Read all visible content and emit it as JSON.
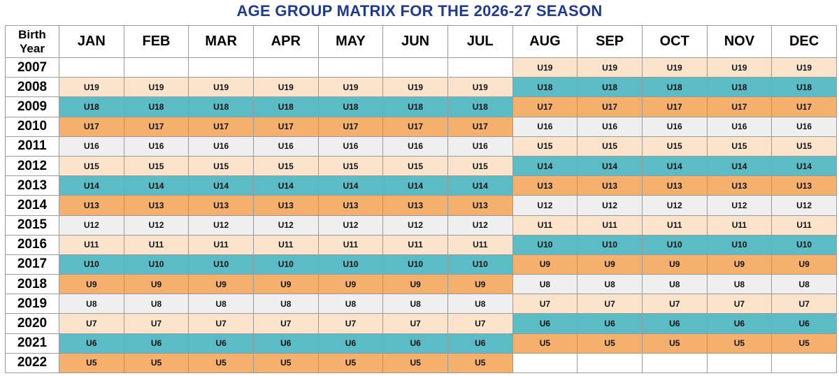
{
  "title": "AGE GROUP MATRIX FOR THE 2026-27 SEASON",
  "header": {
    "corner_line1": "Birth",
    "corner_line2": "Year",
    "months": [
      "JAN",
      "FEB",
      "MAR",
      "APR",
      "MAY",
      "JUN",
      "JUL",
      "AUG",
      "SEP",
      "OCT",
      "NOV",
      "DEC"
    ]
  },
  "rows": [
    {
      "year": "2007",
      "cells": [
        "",
        "",
        "",
        "",
        "",
        "",
        "",
        "U19",
        "U19",
        "U19",
        "U19",
        "U19"
      ]
    },
    {
      "year": "2008",
      "cells": [
        "U19",
        "U19",
        "U19",
        "U19",
        "U19",
        "U19",
        "U19",
        "U18",
        "U18",
        "U18",
        "U18",
        "U18"
      ]
    },
    {
      "year": "2009",
      "cells": [
        "U18",
        "U18",
        "U18",
        "U18",
        "U18",
        "U18",
        "U18",
        "U17",
        "U17",
        "U17",
        "U17",
        "U17"
      ]
    },
    {
      "year": "2010",
      "cells": [
        "U17",
        "U17",
        "U17",
        "U17",
        "U17",
        "U17",
        "U17",
        "U16",
        "U16",
        "U16",
        "U16",
        "U16"
      ]
    },
    {
      "year": "2011",
      "cells": [
        "U16",
        "U16",
        "U16",
        "U16",
        "U16",
        "U16",
        "U16",
        "U15",
        "U15",
        "U15",
        "U15",
        "U15"
      ]
    },
    {
      "year": "2012",
      "cells": [
        "U15",
        "U15",
        "U15",
        "U15",
        "U15",
        "U15",
        "U15",
        "U14",
        "U14",
        "U14",
        "U14",
        "U14"
      ]
    },
    {
      "year": "2013",
      "cells": [
        "U14",
        "U14",
        "U14",
        "U14",
        "U14",
        "U14",
        "U14",
        "U13",
        "U13",
        "U13",
        "U13",
        "U13"
      ]
    },
    {
      "year": "2014",
      "cells": [
        "U13",
        "U13",
        "U13",
        "U13",
        "U13",
        "U13",
        "U13",
        "U12",
        "U12",
        "U12",
        "U12",
        "U12"
      ]
    },
    {
      "year": "2015",
      "cells": [
        "U12",
        "U12",
        "U12",
        "U12",
        "U12",
        "U12",
        "U12",
        "U11",
        "U11",
        "U11",
        "U11",
        "U11"
      ]
    },
    {
      "year": "2016",
      "cells": [
        "U11",
        "U11",
        "U11",
        "U11",
        "U11",
        "U11",
        "U11",
        "U10",
        "U10",
        "U10",
        "U10",
        "U10"
      ]
    },
    {
      "year": "2017",
      "cells": [
        "U10",
        "U10",
        "U10",
        "U10",
        "U10",
        "U10",
        "U10",
        "U9",
        "U9",
        "U9",
        "U9",
        "U9"
      ]
    },
    {
      "year": "2018",
      "cells": [
        "U9",
        "U9",
        "U9",
        "U9",
        "U9",
        "U9",
        "U9",
        "U8",
        "U8",
        "U8",
        "U8",
        "U8"
      ]
    },
    {
      "year": "2019",
      "cells": [
        "U8",
        "U8",
        "U8",
        "U8",
        "U8",
        "U8",
        "U8",
        "U7",
        "U7",
        "U7",
        "U7",
        "U7"
      ]
    },
    {
      "year": "2020",
      "cells": [
        "U7",
        "U7",
        "U7",
        "U7",
        "U7",
        "U7",
        "U7",
        "U6",
        "U6",
        "U6",
        "U6",
        "U6"
      ]
    },
    {
      "year": "2021",
      "cells": [
        "U6",
        "U6",
        "U6",
        "U6",
        "U6",
        "U6",
        "U6",
        "U5",
        "U5",
        "U5",
        "U5",
        "U5"
      ]
    },
    {
      "year": "2022",
      "cells": [
        "U5",
        "U5",
        "U5",
        "U5",
        "U5",
        "U5",
        "U5",
        "",
        "",
        "",
        "",
        ""
      ]
    }
  ],
  "colors": {
    "title": "#1f3a93",
    "peach": "#fce4cc",
    "teal": "#5bbcc5",
    "orange": "#f4b06c",
    "gray": "#efefef"
  }
}
